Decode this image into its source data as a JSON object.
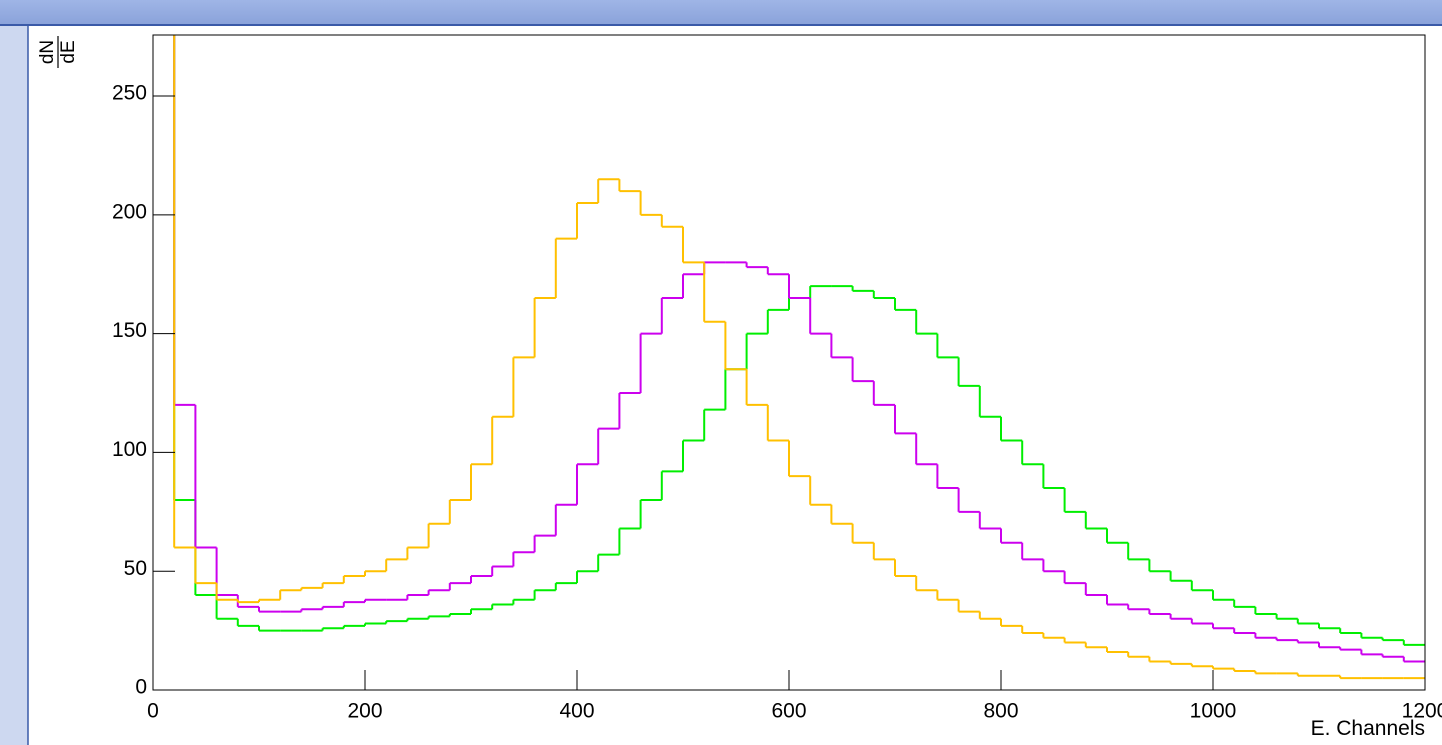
{
  "chart_data": {
    "type": "histogram",
    "ylabel": {
      "numerator": "dN",
      "denominator": "dE"
    },
    "xlabel": "E. Channels",
    "bins": [
      0,
      20,
      40,
      60,
      80,
      100,
      120,
      140,
      160,
      180,
      200,
      220,
      240,
      260,
      280,
      300,
      320,
      340,
      360,
      380,
      400,
      420,
      440,
      460,
      480,
      500,
      520,
      540,
      560,
      580,
      600,
      620,
      640,
      660,
      680,
      700,
      720,
      740,
      760,
      780,
      800,
      820,
      840,
      860,
      880,
      900,
      920,
      940,
      960,
      980,
      1000,
      1020,
      1040,
      1060,
      1080,
      1100,
      1120,
      1140,
      1160,
      1180,
      1200
    ],
    "series": [
      {
        "color": "#00ee00",
        "values": [
          300,
          80,
          40,
          30,
          27,
          25,
          25,
          25,
          26,
          27,
          28,
          29,
          30,
          31,
          32,
          34,
          36,
          38,
          42,
          45,
          50,
          57,
          68,
          80,
          92,
          105,
          118,
          135,
          150,
          160,
          165,
          170,
          170,
          168,
          165,
          160,
          150,
          140,
          128,
          115,
          105,
          95,
          85,
          75,
          68,
          62,
          55,
          50,
          46,
          42,
          38,
          35,
          32,
          30,
          28,
          26,
          24,
          22,
          21,
          19
        ]
      },
      {
        "color": "#cc00ee",
        "values": [
          300,
          120,
          60,
          40,
          35,
          33,
          33,
          34,
          35,
          37,
          38,
          38,
          40,
          42,
          45,
          48,
          52,
          58,
          65,
          78,
          95,
          110,
          125,
          150,
          165,
          175,
          180,
          180,
          178,
          175,
          165,
          150,
          140,
          130,
          120,
          108,
          95,
          85,
          75,
          68,
          62,
          55,
          50,
          45,
          40,
          36,
          34,
          32,
          30,
          28,
          26,
          24,
          22,
          21,
          20,
          18,
          17,
          15,
          14,
          12
        ]
      },
      {
        "color": "#ffc000",
        "values": [
          300,
          60,
          45,
          38,
          37,
          38,
          42,
          43,
          45,
          48,
          50,
          55,
          60,
          70,
          80,
          95,
          115,
          140,
          165,
          190,
          205,
          215,
          210,
          200,
          195,
          180,
          155,
          135,
          120,
          105,
          90,
          78,
          70,
          62,
          55,
          48,
          42,
          38,
          33,
          30,
          27,
          24,
          22,
          20,
          18,
          16,
          14,
          12,
          11,
          10,
          9,
          8,
          7,
          7,
          6,
          6,
          5,
          5,
          5,
          5
        ]
      }
    ],
    "xlim": [
      0,
      1200
    ],
    "ylim": [
      0,
      275.7
    ],
    "xticks": [
      0,
      200,
      400,
      600,
      800,
      1000,
      1200
    ],
    "yticks": [
      0,
      50,
      100,
      150,
      200,
      250
    ]
  }
}
